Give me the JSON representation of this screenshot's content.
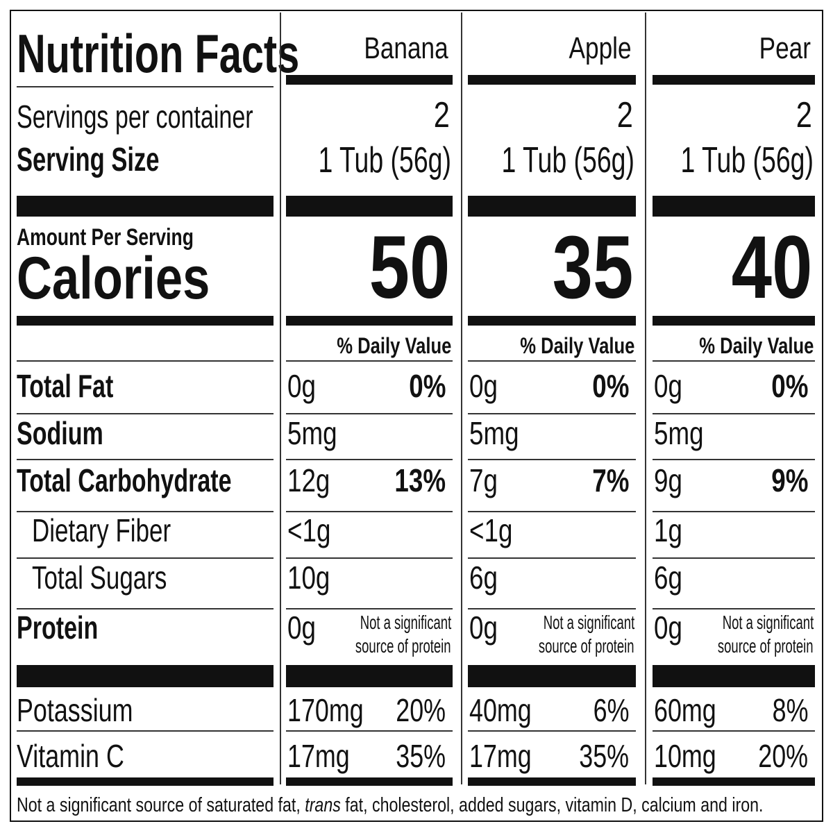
{
  "header": {
    "title": "Nutrition Facts"
  },
  "labels": {
    "servings_per_container": "Servings per container",
    "serving_size": "Serving Size",
    "amount_per_serving": "Amount Per Serving",
    "calories": "Calories",
    "daily_value": "% Daily Value"
  },
  "products": [
    {
      "name": "Banana",
      "servings": "2",
      "serving_size": "1 Tub (56g)",
      "calories": "50",
      "total_fat": "0g",
      "total_fat_dv": "0%",
      "sodium": "5mg",
      "total_carb": "12g",
      "total_carb_dv": "13%",
      "dietary_fiber": "<1g",
      "total_sugars": "10g",
      "protein": "0g",
      "protein_note_1": "Not a significant",
      "protein_note_2": "source of protein",
      "potassium": "170mg",
      "potassium_dv": "20%",
      "vitamin_c": "17mg",
      "vitamin_c_dv": "35%"
    },
    {
      "name": "Apple",
      "servings": "2",
      "serving_size": "1 Tub (56g)",
      "calories": "35",
      "total_fat": "0g",
      "total_fat_dv": "0%",
      "sodium": "5mg",
      "total_carb": "7g",
      "total_carb_dv": "7%",
      "dietary_fiber": "<1g",
      "total_sugars": "6g",
      "protein": "0g",
      "protein_note_1": "Not a significant",
      "protein_note_2": "source of protein",
      "potassium": "40mg",
      "potassium_dv": "6%",
      "vitamin_c": "17mg",
      "vitamin_c_dv": "35%"
    },
    {
      "name": "Pear",
      "servings": "2",
      "serving_size": "1 Tub (56g)",
      "calories": "40",
      "total_fat": "0g",
      "total_fat_dv": "0%",
      "sodium": "5mg",
      "total_carb": "9g",
      "total_carb_dv": "9%",
      "dietary_fiber": "1g",
      "total_sugars": "6g",
      "protein": "0g",
      "protein_note_1": "Not a significant",
      "protein_note_2": "source of protein",
      "potassium": "60mg",
      "potassium_dv": "8%",
      "vitamin_c": "10mg",
      "vitamin_c_dv": "20%"
    }
  ],
  "nutrients": [
    {
      "key": "total_fat",
      "label": "Total Fat",
      "bold": true,
      "indent": false,
      "has_dv": true
    },
    {
      "key": "sodium",
      "label": "Sodium",
      "bold": true,
      "indent": false,
      "has_dv": false
    },
    {
      "key": "total_carb",
      "label": "Total Carbohydrate",
      "bold": true,
      "indent": false,
      "has_dv": true
    },
    {
      "key": "dietary_fiber",
      "label": "Dietary Fiber",
      "bold": false,
      "indent": true,
      "has_dv": false
    },
    {
      "key": "total_sugars",
      "label": "Total Sugars",
      "bold": false,
      "indent": true,
      "has_dv": false
    },
    {
      "key": "protein",
      "label": "Protein",
      "bold": true,
      "indent": false,
      "has_dv": false
    }
  ],
  "micros": [
    {
      "key": "potassium",
      "label": "Potassium"
    },
    {
      "key": "vitamin_c",
      "label": "Vitamin C"
    }
  ],
  "footer": {
    "prefix": "Not a significant source of saturated fat, ",
    "italic": "trans",
    "suffix": " fat, cholesterol, added sugars, vitamin D, calcium and iron."
  }
}
